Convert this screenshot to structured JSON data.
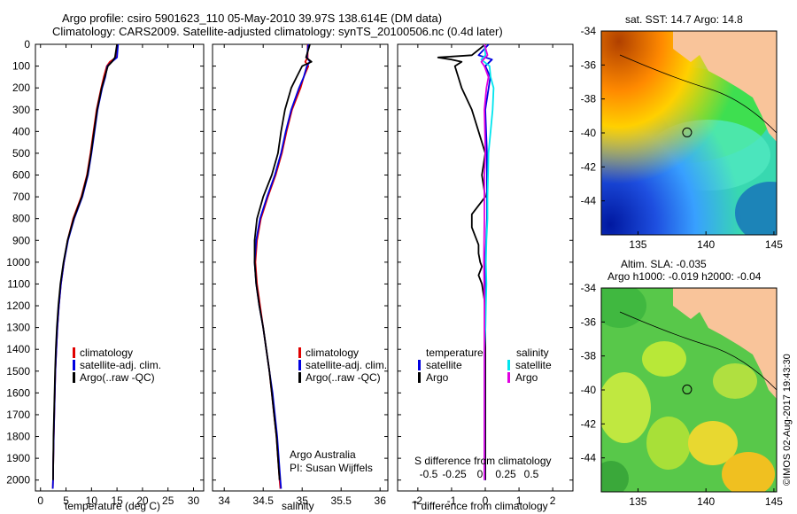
{
  "title": {
    "line1": "Argo profile: csiro 5901623_110 05-May-2010 39.97S 138.614E (DM data)",
    "line2": "Climatology: CARS2009. Satellite-adjusted climatology: synTS_20100506.nc (0.4d later)"
  },
  "colors": {
    "climatology": "#e00000",
    "satellite": "#0000e0",
    "argo": "#000000",
    "salinity_sat": "#00e5ee",
    "salinity_argo": "#e000e0"
  },
  "credits": {
    "line1": "Argo Australia",
    "line2": "PI: Susan Wijffels"
  },
  "timestamp": "©IMOS 02-Aug-2017 19:43:30",
  "map_sst": {
    "title": "sat. SST: 14.7 Argo: 14.8"
  },
  "map_sla": {
    "title1": "Altim. SLA: -0.035",
    "title2": "Argo h1000: -0.019 h2000: -0.04"
  },
  "chart_data": [
    {
      "type": "line",
      "id": "temperature",
      "xlabel": "temperature (deg C)",
      "xlim": [
        -1,
        32
      ],
      "ylim": [
        2050,
        0
      ],
      "xticks": [
        0,
        5,
        10,
        15,
        20,
        25,
        30
      ],
      "yticks": [
        0,
        100,
        200,
        300,
        400,
        500,
        600,
        700,
        800,
        900,
        1000,
        1100,
        1200,
        1300,
        1400,
        1500,
        1600,
        1700,
        1800,
        1900,
        2000
      ],
      "legend": [
        "climatology",
        "satellite-adj. clim.",
        "Argo(..raw -QC)"
      ],
      "series": [
        {
          "name": "climatology",
          "depth": [
            0,
            60,
            80,
            100,
            150,
            200,
            300,
            400,
            500,
            600,
            700,
            800,
            900,
            1000,
            1100,
            1200,
            1300,
            1400,
            1500,
            1600,
            1700,
            1800,
            1900,
            2000,
            2040
          ],
          "values": [
            15.0,
            14.8,
            13.6,
            13.0,
            12.4,
            11.9,
            11.0,
            10.4,
            9.8,
            9.1,
            8.0,
            6.4,
            5.3,
            4.6,
            4.0,
            3.6,
            3.3,
            3.1,
            2.9,
            2.8,
            2.7,
            2.6,
            2.5,
            2.45,
            2.4
          ]
        },
        {
          "name": "satellite-adj. clim.",
          "depth": [
            0,
            60,
            80,
            100,
            150,
            200,
            300,
            400,
            500,
            600,
            700,
            800,
            900,
            1000,
            1100,
            1200,
            1300,
            1400,
            1500,
            1600,
            1700,
            1800,
            1900,
            2000,
            2040
          ],
          "values": [
            15.2,
            15.0,
            14.0,
            13.1,
            12.7,
            12.1,
            11.2,
            10.6,
            10.0,
            9.3,
            8.2,
            6.6,
            5.4,
            4.6,
            4.0,
            3.6,
            3.3,
            3.1,
            2.9,
            2.8,
            2.7,
            2.6,
            2.5,
            2.45,
            2.4
          ]
        },
        {
          "name": "Argo(..raw -QC)",
          "depth": [
            0,
            60,
            80,
            100,
            150,
            200,
            300,
            400,
            500,
            600,
            700,
            800,
            900,
            1000,
            1100,
            1200,
            1300,
            1400,
            1500,
            1600,
            1700,
            1800,
            1900,
            2000
          ],
          "values": [
            15.0,
            14.6,
            14.0,
            13.2,
            12.6,
            12.0,
            11.1,
            10.5,
            9.9,
            9.2,
            8.1,
            6.5,
            5.3,
            4.5,
            3.9,
            3.5,
            3.2,
            3.0,
            2.85,
            2.75,
            2.65,
            2.55,
            2.5,
            2.45
          ]
        }
      ]
    },
    {
      "type": "line",
      "id": "salinity",
      "xlabel": "salinity",
      "xlim": [
        33.85,
        36.1
      ],
      "ylim": [
        2050,
        0
      ],
      "xticks": [
        34,
        34.5,
        35,
        35.5,
        36
      ],
      "legend": [
        "climatology",
        "satellite-adj. clim.",
        "Argo(..raw -QC)"
      ],
      "series": [
        {
          "name": "climatology",
          "depth": [
            0,
            60,
            80,
            100,
            150,
            200,
            300,
            400,
            500,
            600,
            700,
            800,
            900,
            1000,
            1100,
            1200,
            1300,
            1400,
            1500,
            1600,
            1700,
            1800,
            1900,
            2000,
            2040
          ],
          "values": [
            35.07,
            35.07,
            35.04,
            35.08,
            35.02,
            34.98,
            34.87,
            34.8,
            34.74,
            34.66,
            34.56,
            34.47,
            34.42,
            34.4,
            34.42,
            34.46,
            34.5,
            34.54,
            34.58,
            34.61,
            34.64,
            34.67,
            34.69,
            34.71,
            34.72
          ]
        },
        {
          "name": "satellite-adj. clim.",
          "depth": [
            0,
            60,
            80,
            100,
            150,
            200,
            300,
            400,
            500,
            600,
            700,
            800,
            900,
            1000,
            1100,
            1200,
            1300,
            1400,
            1500,
            1600,
            1700,
            1800,
            1900,
            2000,
            2040
          ],
          "values": [
            35.08,
            35.06,
            35.1,
            35.06,
            35.02,
            34.96,
            34.86,
            34.79,
            34.73,
            34.65,
            34.55,
            34.46,
            34.41,
            34.39,
            34.41,
            34.45,
            34.5,
            34.54,
            34.58,
            34.62,
            34.65,
            34.68,
            34.7,
            34.72,
            34.73
          ]
        },
        {
          "name": "Argo(..raw -QC)",
          "depth": [
            0,
            60,
            80,
            100,
            150,
            200,
            300,
            400,
            500,
            600,
            700,
            800,
            900,
            1000,
            1100,
            1200,
            1300,
            1400,
            1500,
            1600,
            1700,
            1800,
            1900,
            2000
          ],
          "values": [
            35.1,
            35.05,
            35.12,
            35.0,
            34.93,
            34.86,
            34.78,
            34.73,
            34.69,
            34.61,
            34.5,
            34.42,
            34.39,
            34.39,
            34.41,
            34.45,
            34.5,
            34.54,
            34.58,
            34.61,
            34.64,
            34.67,
            34.69,
            34.71
          ]
        }
      ]
    },
    {
      "type": "line",
      "id": "difference",
      "xlabel": "T difference from climatology",
      "xlabel_top": "S difference from climatology",
      "xlim": [
        -2.6,
        2.6
      ],
      "ylim": [
        2050,
        0
      ],
      "xticks": [
        -2,
        -1,
        0,
        1,
        2
      ],
      "xticks_top_labels": [
        "-0.5",
        "-0.25",
        "0",
        "0.25",
        "0.5"
      ],
      "legend": {
        "temperature_title": "temperature",
        "salinity_title": "salinity",
        "temperature": [
          "satellite",
          "Argo"
        ],
        "salinity": [
          "satellite",
          "Argo"
        ]
      },
      "series": [
        {
          "name": "temperature satellite",
          "depth": [
            0,
            50,
            70,
            100,
            150,
            200,
            300,
            500,
            800,
            1000,
            1200,
            1500,
            2000
          ],
          "values": [
            0.1,
            -0.2,
            0.2,
            0.0,
            0.15,
            0.1,
            0.0,
            0.05,
            0.05,
            0.0,
            0.0,
            0.0,
            0.0
          ]
        },
        {
          "name": "temperature Argo",
          "depth": [
            0,
            50,
            60,
            70,
            80,
            100,
            150,
            200,
            300,
            400,
            500,
            600,
            700,
            780,
            840,
            880,
            920,
            960,
            1000,
            1020,
            1060,
            1100,
            1200,
            1400,
            1600,
            1800,
            2000
          ],
          "values": [
            0.0,
            -0.4,
            -1.4,
            -1.0,
            -0.7,
            -0.9,
            -0.8,
            -0.7,
            -0.4,
            -0.2,
            0.0,
            -0.1,
            0.0,
            -0.4,
            -0.4,
            -0.3,
            -0.2,
            -0.2,
            -0.15,
            -0.1,
            -0.2,
            -0.1,
            0.0,
            0.0,
            0.0,
            0.0,
            0.0
          ]
        },
        {
          "name": "salinity satellite",
          "depth": [
            0,
            50,
            70,
            100,
            150,
            200,
            300,
            400,
            500,
            600,
            700,
            800,
            900,
            1000,
            1100,
            1200,
            1300,
            1400,
            1500,
            1600,
            1700,
            1800,
            1900,
            2000
          ],
          "values": [
            0.0,
            0.01,
            -0.03,
            0.05,
            0.06,
            0.09,
            0.08,
            0.06,
            0.04,
            0.035,
            0.03,
            0.03,
            0.02,
            0.015,
            0.02,
            0.015,
            0.01,
            0.0,
            0.0,
            0.0,
            0.0,
            0.0,
            0.0,
            0.0
          ]
        },
        {
          "name": "salinity Argo",
          "depth": [
            0,
            50,
            80,
            100,
            150,
            200,
            300,
            400,
            500,
            600,
            800,
            1000,
            1200,
            1400,
            1600,
            1800,
            2000
          ],
          "values": [
            0.0,
            0.03,
            -0.03,
            0.0,
            0.04,
            0.02,
            0.0,
            0.005,
            0.01,
            0.0,
            0.0,
            -0.005,
            0.0,
            0.0,
            0.0,
            0.0,
            0.0
          ]
        }
      ]
    },
    {
      "type": "heatmap",
      "id": "map_sst",
      "xlim": [
        132.3,
        145.2
      ],
      "ylim": [
        -46,
        -34
      ],
      "xticks": [
        135,
        140,
        145
      ],
      "yticks": [
        -34,
        -36,
        -38,
        -40,
        -42,
        -44
      ],
      "argo_position": {
        "lon": 138.614,
        "lat": -39.97
      }
    },
    {
      "type": "heatmap",
      "id": "map_sla",
      "xlim": [
        132.3,
        145.2
      ],
      "ylim": [
        -46,
        -34
      ],
      "xticks": [
        135,
        140,
        145
      ],
      "yticks": [
        -34,
        -36,
        -38,
        -40,
        -42,
        -44
      ],
      "argo_position": {
        "lon": 138.614,
        "lat": -39.97
      }
    }
  ]
}
